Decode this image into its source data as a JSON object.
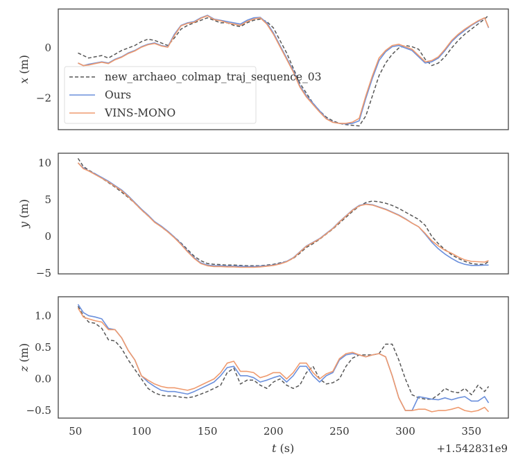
{
  "figure": {
    "offset_text": "+1.542831e9",
    "xlabel_italic": "t",
    "xlabel_unit": " (s)"
  },
  "legend": {
    "items": [
      {
        "label": "new_archaeo_colmap_traj_sequence_03",
        "style": "dashed",
        "color": "#555555"
      },
      {
        "label": "Ours",
        "style": "solid",
        "color": "#6a8fdc"
      },
      {
        "label": "VINS-MONO",
        "style": "solid",
        "color": "#ef9a6e"
      }
    ]
  },
  "chart_data": [
    {
      "type": "line",
      "title": "",
      "xlabel": "",
      "ylabel": "x (m)",
      "ylabel_italic": "x",
      "ylabel_unit": " (m)",
      "xlim": [
        37,
        378
      ],
      "ylim": [
        -3.25,
        1.55
      ],
      "yticks": [
        0,
        -2
      ],
      "ytick_labels": [
        "0",
        "−2"
      ],
      "grid": false,
      "legend_position": "lower left",
      "x": [
        52,
        56,
        60,
        65,
        70,
        75,
        80,
        85,
        90,
        95,
        100,
        105,
        110,
        115,
        120,
        125,
        130,
        135,
        140,
        145,
        150,
        155,
        160,
        165,
        170,
        175,
        180,
        185,
        190,
        195,
        200,
        205,
        210,
        215,
        220,
        225,
        230,
        235,
        240,
        245,
        250,
        255,
        260,
        265,
        270,
        275,
        280,
        285,
        290,
        295,
        300,
        305,
        310,
        315,
        320,
        325,
        330,
        335,
        340,
        345,
        350,
        355,
        360,
        363
      ],
      "series": [
        {
          "name": "new_archaeo_colmap_traj_sequence_03",
          "values": [
            -0.2,
            -0.3,
            -0.4,
            -0.35,
            -0.3,
            -0.4,
            -0.25,
            -0.1,
            0.0,
            0.1,
            0.25,
            0.35,
            0.3,
            0.2,
            0.1,
            0.4,
            0.75,
            0.9,
            1.0,
            1.1,
            1.2,
            1.1,
            1.0,
            1.0,
            0.9,
            0.85,
            1.0,
            1.1,
            1.15,
            1.05,
            0.8,
            0.3,
            -0.2,
            -0.8,
            -1.4,
            -1.8,
            -2.2,
            -2.5,
            -2.75,
            -2.9,
            -3.0,
            -3.05,
            -3.08,
            -3.1,
            -2.7,
            -1.9,
            -1.1,
            -0.6,
            -0.25,
            0.0,
            0.1,
            0.05,
            -0.05,
            -0.45,
            -0.7,
            -0.6,
            -0.35,
            0.0,
            0.3,
            0.55,
            0.75,
            0.95,
            1.15,
            1.3
          ]
        },
        {
          "name": "Ours",
          "values": [
            -0.6,
            -0.7,
            -0.65,
            -0.6,
            -0.55,
            -0.6,
            -0.45,
            -0.35,
            -0.2,
            -0.1,
            0.05,
            0.15,
            0.2,
            0.1,
            0.05,
            0.55,
            0.9,
            1.0,
            1.05,
            1.2,
            1.3,
            1.15,
            1.1,
            1.05,
            1.0,
            0.95,
            1.1,
            1.2,
            1.22,
            1.0,
            0.6,
            0.1,
            -0.4,
            -0.9,
            -1.5,
            -1.9,
            -2.2,
            -2.5,
            -2.8,
            -2.95,
            -3.0,
            -3.02,
            -3.0,
            -2.9,
            -2.0,
            -1.2,
            -0.5,
            -0.15,
            0.05,
            0.1,
            0.0,
            -0.1,
            -0.35,
            -0.6,
            -0.55,
            -0.4,
            -0.1,
            0.25,
            0.5,
            0.7,
            0.9,
            1.05,
            1.2,
            0.8
          ]
        },
        {
          "name": "VINS-MONO",
          "values": [
            -0.6,
            -0.7,
            -0.68,
            -0.62,
            -0.57,
            -0.62,
            -0.47,
            -0.37,
            -0.22,
            -0.12,
            0.03,
            0.13,
            0.18,
            0.08,
            0.03,
            0.5,
            0.88,
            0.98,
            1.02,
            1.18,
            1.28,
            1.13,
            1.08,
            1.0,
            0.95,
            0.9,
            1.05,
            1.15,
            1.2,
            0.95,
            0.55,
            0.05,
            -0.45,
            -0.95,
            -1.55,
            -1.95,
            -2.25,
            -2.55,
            -2.82,
            -2.96,
            -3.0,
            -3.0,
            -2.95,
            -2.8,
            -1.9,
            -1.1,
            -0.4,
            -0.1,
            0.1,
            0.15,
            0.05,
            -0.05,
            -0.3,
            -0.55,
            -0.5,
            -0.35,
            -0.05,
            0.3,
            0.55,
            0.75,
            0.92,
            1.08,
            1.2,
            0.82
          ]
        }
      ]
    },
    {
      "type": "line",
      "title": "",
      "xlabel": "",
      "ylabel": "y (m)",
      "ylabel_italic": "y",
      "ylabel_unit": " (m)",
      "xlim": [
        37,
        378
      ],
      "ylim": [
        -5.1,
        11.3
      ],
      "yticks": [
        10,
        5,
        0,
        -5
      ],
      "ytick_labels": [
        "10",
        "5",
        "0",
        "−5"
      ],
      "grid": false,
      "x": [
        52,
        56,
        60,
        65,
        70,
        75,
        80,
        85,
        90,
        95,
        100,
        105,
        110,
        115,
        120,
        125,
        130,
        135,
        140,
        145,
        150,
        155,
        160,
        165,
        170,
        175,
        180,
        185,
        190,
        195,
        200,
        205,
        210,
        215,
        220,
        225,
        230,
        235,
        240,
        245,
        250,
        255,
        260,
        265,
        270,
        275,
        280,
        285,
        290,
        295,
        300,
        305,
        310,
        315,
        320,
        325,
        330,
        335,
        340,
        345,
        350,
        355,
        360,
        363
      ],
      "series": [
        {
          "name": "new_archaeo_colmap_traj_sequence_03",
          "values": [
            10.6,
            9.5,
            9.0,
            8.5,
            7.9,
            7.3,
            6.7,
            6.0,
            5.3,
            4.5,
            3.6,
            2.8,
            2.0,
            1.3,
            0.6,
            -0.1,
            -0.9,
            -1.8,
            -2.7,
            -3.3,
            -3.7,
            -3.8,
            -3.85,
            -3.9,
            -3.9,
            -3.95,
            -4.0,
            -4.0,
            -4.0,
            -3.9,
            -3.8,
            -3.6,
            -3.4,
            -3.0,
            -2.3,
            -1.5,
            -1.0,
            -0.4,
            0.3,
            1.0,
            1.8,
            2.6,
            3.4,
            4.1,
            4.6,
            4.8,
            4.7,
            4.5,
            4.2,
            3.8,
            3.3,
            2.8,
            2.3,
            1.5,
            0.0,
            -1.0,
            -1.8,
            -2.5,
            -3.0,
            -3.4,
            -3.7,
            -3.8,
            -3.8,
            -3.4
          ]
        },
        {
          "name": "Ours",
          "values": [
            10.0,
            9.3,
            8.9,
            8.5,
            8.0,
            7.5,
            6.9,
            6.3,
            5.5,
            4.6,
            3.7,
            2.9,
            2.0,
            1.4,
            0.7,
            -0.1,
            -1.0,
            -2.0,
            -2.9,
            -3.6,
            -3.9,
            -4.0,
            -4.0,
            -4.05,
            -4.05,
            -4.05,
            -4.1,
            -4.1,
            -4.05,
            -4.0,
            -3.9,
            -3.7,
            -3.4,
            -2.9,
            -2.1,
            -1.3,
            -0.8,
            -0.3,
            0.4,
            1.1,
            2.0,
            2.8,
            3.6,
            4.2,
            4.4,
            4.3,
            4.0,
            3.7,
            3.3,
            2.9,
            2.4,
            1.8,
            1.3,
            0.3,
            -0.8,
            -1.7,
            -2.4,
            -3.0,
            -3.5,
            -3.8,
            -3.95,
            -3.95,
            -3.9,
            -3.9
          ]
        },
        {
          "name": "VINS-MONO",
          "values": [
            10.0,
            9.2,
            8.9,
            8.4,
            7.9,
            7.4,
            6.8,
            6.2,
            5.4,
            4.5,
            3.6,
            2.8,
            1.9,
            1.3,
            0.6,
            -0.2,
            -1.1,
            -2.1,
            -3.0,
            -3.7,
            -4.0,
            -4.1,
            -4.1,
            -4.15,
            -4.15,
            -4.2,
            -4.2,
            -4.2,
            -4.15,
            -4.05,
            -3.95,
            -3.75,
            -3.45,
            -2.95,
            -2.15,
            -1.35,
            -0.85,
            -0.35,
            0.35,
            1.05,
            1.95,
            2.75,
            3.55,
            4.15,
            4.35,
            4.25,
            3.95,
            3.65,
            3.25,
            2.85,
            2.35,
            1.8,
            1.3,
            0.4,
            -0.6,
            -1.3,
            -1.9,
            -2.3,
            -2.8,
            -3.2,
            -3.4,
            -3.45,
            -3.5,
            -3.3
          ]
        }
      ]
    },
    {
      "type": "line",
      "title": "",
      "xlabel": "t (s)",
      "ylabel": "z (m)",
      "ylabel_italic": "z",
      "ylabel_unit": " (m)",
      "xlim": [
        37,
        378
      ],
      "ylim": [
        -0.62,
        1.3
      ],
      "xticks": [
        50,
        100,
        150,
        200,
        250,
        300,
        350
      ],
      "xtick_labels": [
        "50",
        "100",
        "150",
        "200",
        "250",
        "300",
        "350"
      ],
      "yticks": [
        1.0,
        0.5,
        0.0,
        -0.5
      ],
      "ytick_labels": [
        "1.0",
        "0.5",
        "0.0",
        "−0.5"
      ],
      "grid": false,
      "x": [
        52,
        56,
        60,
        65,
        70,
        75,
        80,
        85,
        90,
        95,
        100,
        105,
        110,
        115,
        120,
        125,
        130,
        135,
        140,
        145,
        150,
        155,
        160,
        165,
        170,
        175,
        180,
        185,
        190,
        195,
        200,
        205,
        210,
        215,
        220,
        225,
        230,
        235,
        240,
        245,
        250,
        255,
        260,
        265,
        270,
        275,
        280,
        285,
        290,
        295,
        300,
        305,
        310,
        315,
        320,
        325,
        330,
        335,
        340,
        345,
        350,
        355,
        360,
        363
      ],
      "series": [
        {
          "name": "new_archaeo_colmap_traj_sequence_03",
          "values": [
            1.15,
            1.0,
            0.9,
            0.88,
            0.8,
            0.62,
            0.6,
            0.48,
            0.3,
            0.15,
            0.0,
            -0.15,
            -0.22,
            -0.26,
            -0.27,
            -0.27,
            -0.29,
            -0.3,
            -0.28,
            -0.24,
            -0.2,
            -0.15,
            -0.1,
            0.1,
            0.17,
            -0.08,
            -0.02,
            -0.02,
            -0.1,
            -0.15,
            -0.05,
            0.0,
            -0.1,
            -0.15,
            -0.1,
            0.1,
            0.2,
            0.0,
            -0.08,
            -0.06,
            0.0,
            0.2,
            0.33,
            0.38,
            0.38,
            0.38,
            0.4,
            0.55,
            0.55,
            0.3,
            0.0,
            -0.25,
            -0.3,
            -0.32,
            -0.32,
            -0.25,
            -0.15,
            -0.2,
            -0.22,
            -0.15,
            -0.25,
            -0.1,
            -0.2,
            -0.12
          ]
        },
        {
          "name": "Ours",
          "values": [
            1.18,
            1.05,
            1.0,
            0.98,
            0.95,
            0.8,
            0.78,
            0.65,
            0.45,
            0.3,
            0.05,
            -0.05,
            -0.12,
            -0.18,
            -0.2,
            -0.2,
            -0.22,
            -0.24,
            -0.2,
            -0.15,
            -0.1,
            -0.05,
            0.05,
            0.18,
            0.2,
            0.05,
            0.05,
            0.02,
            -0.05,
            -0.02,
            0.02,
            0.05,
            -0.05,
            0.05,
            0.2,
            0.2,
            0.05,
            -0.05,
            0.05,
            0.1,
            0.3,
            0.38,
            0.4,
            0.38,
            0.35,
            0.38,
            0.4,
            0.35,
            0.05,
            -0.3,
            -0.5,
            -0.5,
            -0.28,
            -0.3,
            -0.32,
            -0.33,
            -0.3,
            -0.33,
            -0.3,
            -0.28,
            -0.35,
            -0.35,
            -0.28,
            -0.38
          ]
        },
        {
          "name": "VINS-MONO",
          "values": [
            1.12,
            0.98,
            0.95,
            0.92,
            0.9,
            0.78,
            0.78,
            0.65,
            0.45,
            0.3,
            0.05,
            -0.02,
            -0.08,
            -0.12,
            -0.14,
            -0.14,
            -0.16,
            -0.18,
            -0.15,
            -0.1,
            -0.05,
            0.0,
            0.1,
            0.25,
            0.28,
            0.12,
            0.12,
            0.1,
            0.02,
            0.05,
            0.1,
            0.1,
            0.0,
            0.1,
            0.25,
            0.25,
            0.1,
            0.0,
            0.08,
            0.12,
            0.32,
            0.4,
            0.42,
            0.38,
            0.35,
            0.38,
            0.4,
            0.35,
            0.05,
            -0.3,
            -0.5,
            -0.5,
            -0.48,
            -0.48,
            -0.52,
            -0.5,
            -0.5,
            -0.48,
            -0.45,
            -0.5,
            -0.52,
            -0.5,
            -0.45,
            -0.52
          ]
        }
      ]
    }
  ]
}
